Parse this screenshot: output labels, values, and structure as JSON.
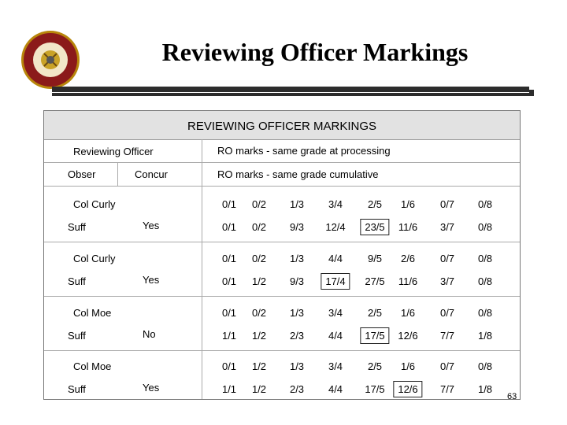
{
  "slide": {
    "title": "Reviewing Officer Markings",
    "page_number": "63",
    "seal": {
      "icon": "usmc-seal-icon",
      "text_top": "DEPARTMENT OF THE NAVY",
      "text_bottom": "UNITED STATES MARINE CORPS"
    }
  },
  "table": {
    "heading": "REVIEWING OFFICER MARKINGS",
    "header_left": "Reviewing Officer",
    "header_right_1": "RO marks  -  same grade at processing",
    "col_obser": "Obser",
    "col_concur": "Concur",
    "header_right_2": "RO marks  -  same grade cumulative",
    "groups": [
      {
        "name": "Col Curly",
        "obser": "Suff",
        "concur": "Yes",
        "processing": [
          "0/1",
          "0/2",
          "1/3",
          "3/4",
          "2/5",
          "1/6",
          "0/7",
          "0/8"
        ],
        "cumulative": [
          "0/1",
          "0/2",
          "9/3",
          "12/4",
          "23/5",
          "11/6",
          "3/7",
          "0/8"
        ],
        "boxed_index": 4
      },
      {
        "name": "Col Curly",
        "obser": "Suff",
        "concur": "Yes",
        "processing": [
          "0/1",
          "0/2",
          "1/3",
          "4/4",
          "9/5",
          "2/6",
          "0/7",
          "0/8"
        ],
        "cumulative": [
          "0/1",
          "1/2",
          "9/3",
          "17/4",
          "27/5",
          "11/6",
          "3/7",
          "0/8"
        ],
        "boxed_index": 3
      },
      {
        "name": "Col Moe",
        "obser": "Suff",
        "concur": "No",
        "processing": [
          "0/1",
          "0/2",
          "1/3",
          "3/4",
          "2/5",
          "1/6",
          "0/7",
          "0/8"
        ],
        "cumulative": [
          "1/1",
          "1/2",
          "2/3",
          "4/4",
          "17/5",
          "12/6",
          "7/7",
          "1/8"
        ],
        "boxed_index": 4
      },
      {
        "name": "Col Moe",
        "obser": "Suff",
        "concur": "Yes",
        "processing": [
          "0/1",
          "1/2",
          "1/3",
          "3/4",
          "2/5",
          "1/6",
          "0/7",
          "0/8"
        ],
        "cumulative": [
          "1/1",
          "1/2",
          "2/3",
          "4/4",
          "17/5",
          "12/6",
          "7/7",
          "1/8"
        ],
        "boxed_index": 5
      }
    ]
  }
}
